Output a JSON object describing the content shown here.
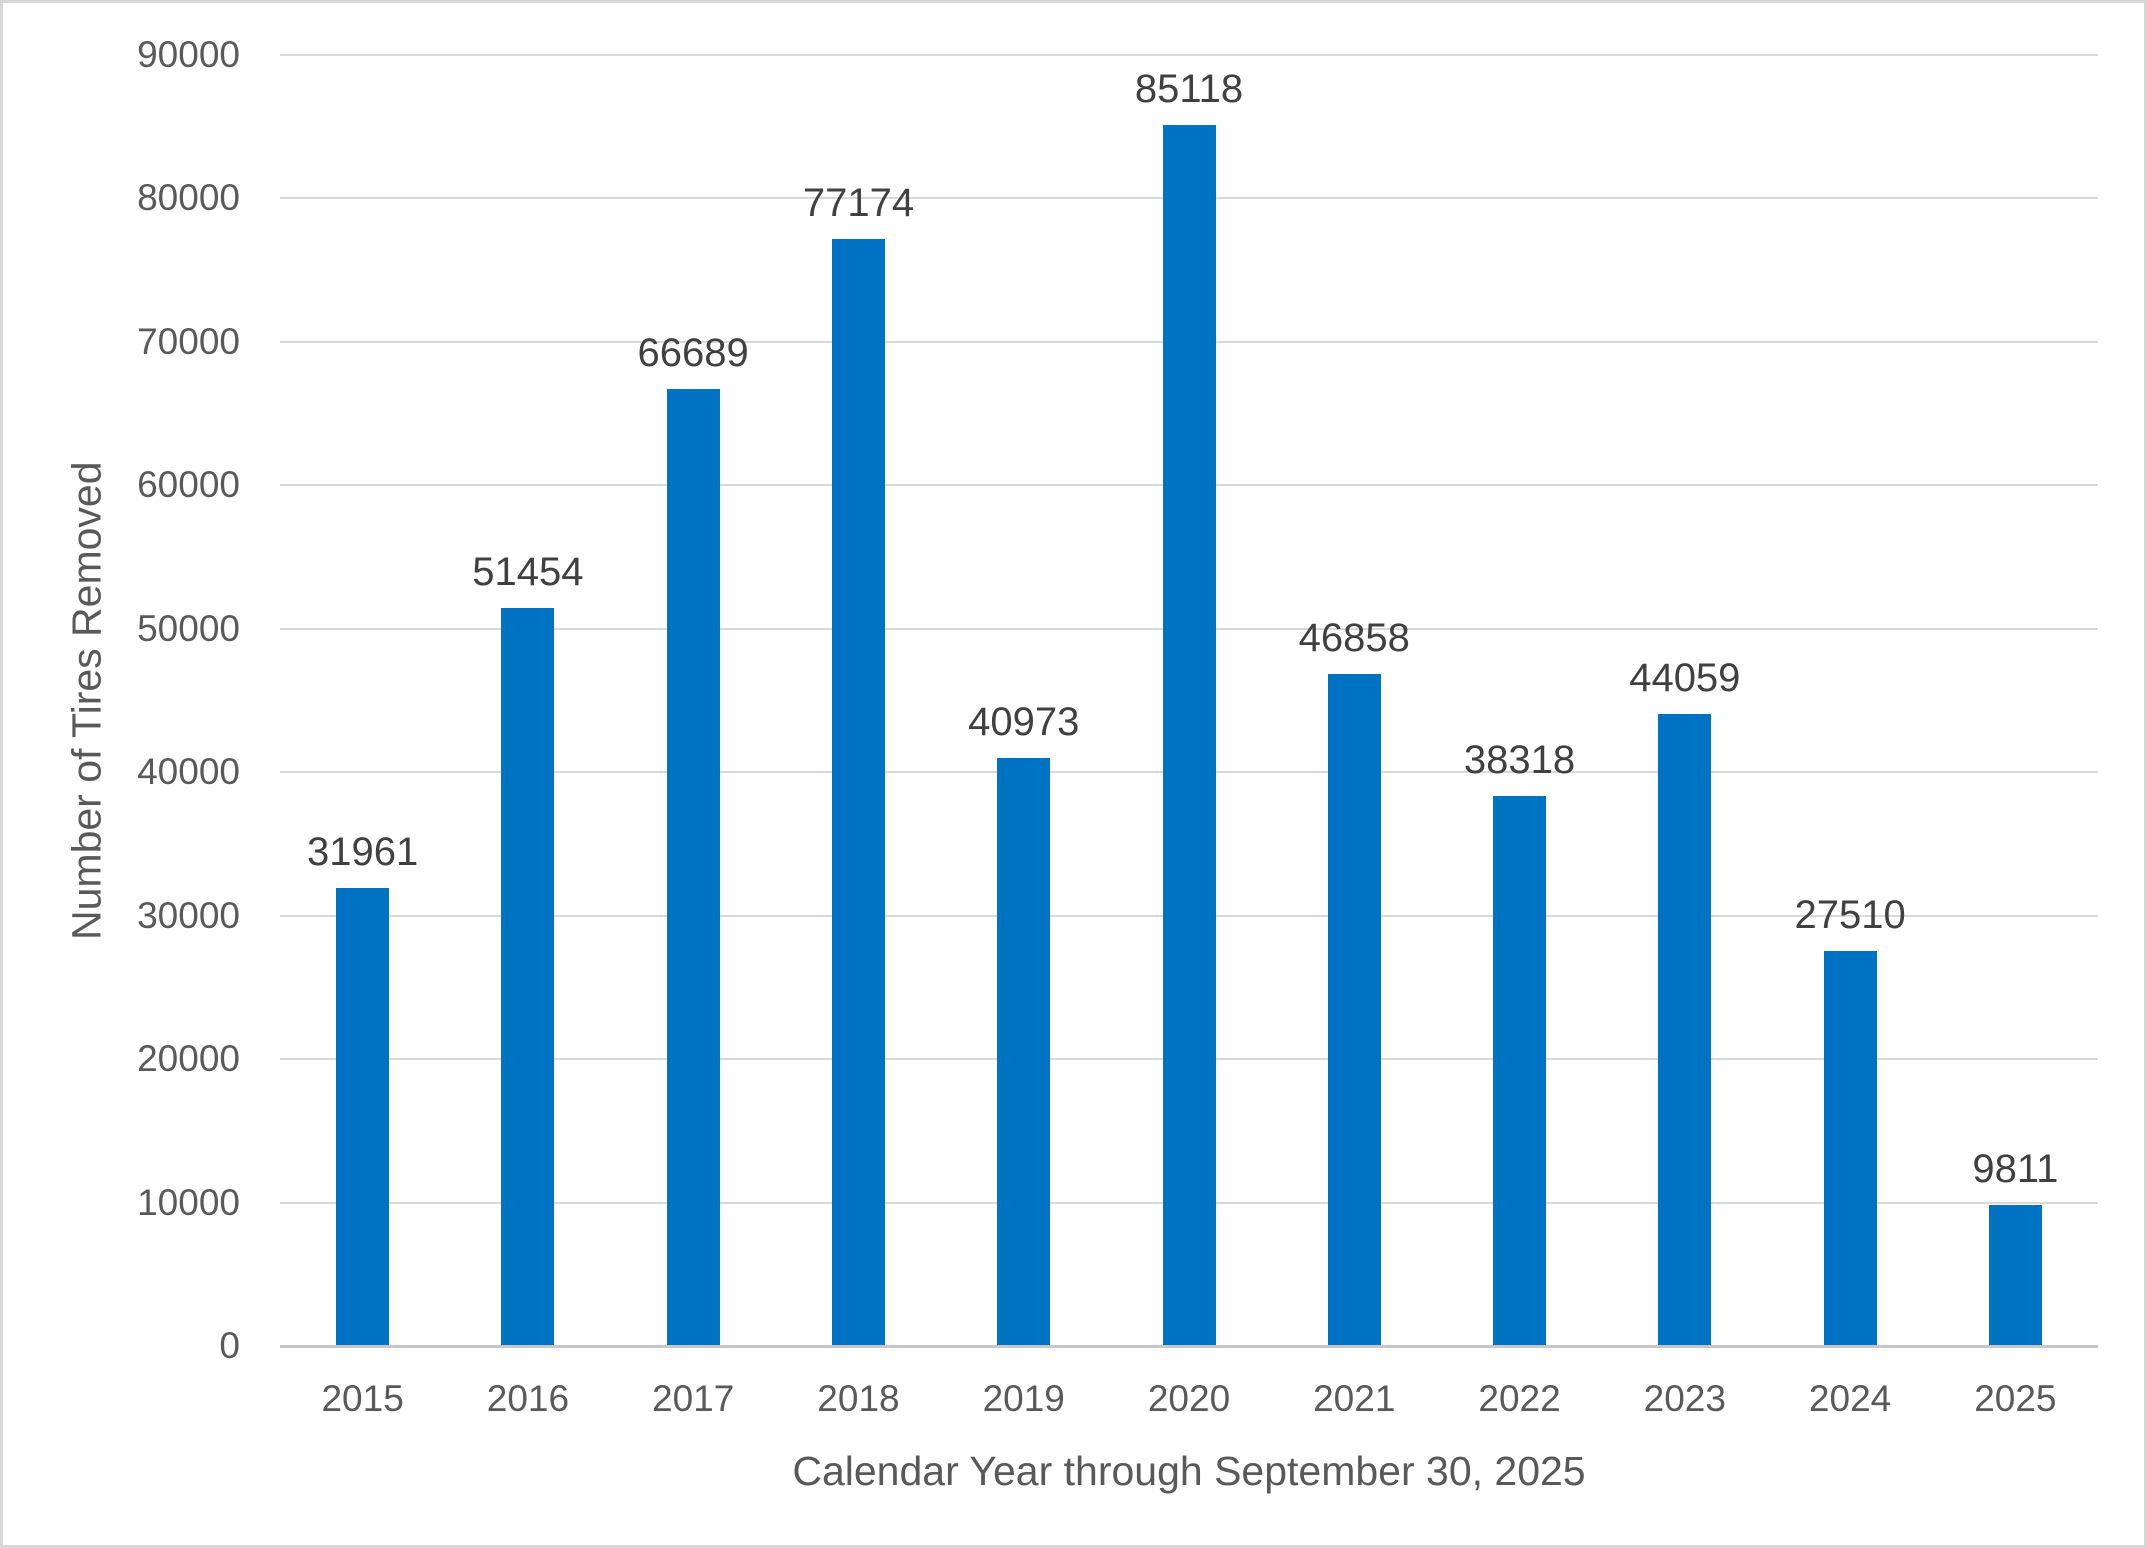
{
  "chart_data": {
    "type": "bar",
    "categories": [
      "2015",
      "2016",
      "2017",
      "2018",
      "2019",
      "2020",
      "2021",
      "2022",
      "2023",
      "2024",
      "2025"
    ],
    "values": [
      31961,
      51454,
      66689,
      77174,
      40973,
      85118,
      46858,
      38318,
      44059,
      27510,
      9811
    ],
    "data_labels": [
      "31961",
      "51454",
      "66689",
      "77174",
      "40973",
      "85118",
      "46858",
      "38318",
      "44059",
      "27510",
      "9811"
    ],
    "title": "",
    "xlabel": "Calendar Year through September 30, 2025",
    "ylabel": "Number of Tires Removed",
    "ylim": [
      0,
      90000
    ],
    "ytick_step": 10000,
    "ytick_labels": [
      "0",
      "10000",
      "20000",
      "30000",
      "40000",
      "50000",
      "60000",
      "70000",
      "80000",
      "90000"
    ],
    "grid": true,
    "legend_position": "none",
    "colors": {
      "bar": "#0072C4",
      "gridline": "#D9D9D9",
      "axis_line": "#C6C6C6",
      "tick_text": "#595959",
      "data_label_text": "#404040",
      "border": "#D6D6D6",
      "background": "#FFFFFF"
    }
  }
}
